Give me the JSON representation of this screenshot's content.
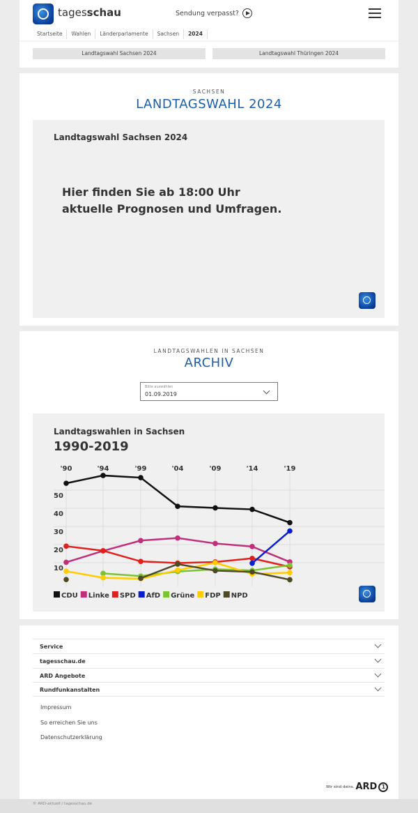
{
  "header": {
    "brand_light": "tages",
    "brand_bold": "schau",
    "missed": "Sendung verpasst?",
    "breadcrumbs": [
      "Startseite",
      "Wahlen",
      "Länderparlamente",
      "Sachsen",
      "2024"
    ],
    "quicklinks": [
      "Landtagswahl Sachsen 2024",
      "Landtagswahl Thüringen 2024"
    ]
  },
  "live": {
    "kicker": "SACHSEN",
    "title": "LANDTAGSWAHL 2024",
    "box_title": "Landtagswahl Sachsen 2024",
    "message_line1": "Hier finden Sie ab 18:00 Uhr",
    "message_line2": "aktuelle Prognosen und Umfragen."
  },
  "archive": {
    "kicker": "LANDTAGSWAHLEN IN SACHSEN",
    "title": "ARCHIV",
    "select_label": "Bitte auswählen",
    "select_value": "01.09.2019"
  },
  "chart_data": {
    "type": "line",
    "title": "Landtagswahlen in Sachsen",
    "subtitle": "1990-2019",
    "categories": [
      "'90",
      "'94",
      "'99",
      "'04",
      "'09",
      "'14",
      "'19"
    ],
    "yticks": [
      10,
      20,
      30,
      40,
      50
    ],
    "ylim": [
      0,
      60
    ],
    "grid": true,
    "legend": "bottom-left",
    "series": [
      {
        "name": "CDU",
        "color": "#111111",
        "values": [
          53.8,
          58.1,
          56.9,
          41.1,
          40.2,
          39.4,
          32.1
        ]
      },
      {
        "name": "Linke",
        "color": "#c0307a",
        "values": [
          10.2,
          16.5,
          22.2,
          23.6,
          20.6,
          18.9,
          10.4
        ]
      },
      {
        "name": "SPD",
        "color": "#e0201b",
        "values": [
          19.1,
          16.6,
          10.7,
          9.8,
          10.4,
          12.4,
          7.7
        ]
      },
      {
        "name": "AfD",
        "color": "#0a1ecc",
        "values": [
          null,
          null,
          null,
          null,
          null,
          9.7,
          27.5
        ]
      },
      {
        "name": "Grüne",
        "color": "#7ac431",
        "values": [
          null,
          4.1,
          2.6,
          5.1,
          6.4,
          5.7,
          8.6
        ]
      },
      {
        "name": "FDP",
        "color": "#ffcc00",
        "values": [
          5.3,
          1.7,
          1.1,
          5.9,
          10.0,
          3.8,
          4.5
        ]
      },
      {
        "name": "NPD",
        "color": "#4e4a26",
        "values": [
          0.7,
          null,
          1.4,
          9.2,
          5.6,
          4.9,
          0.6
        ]
      }
    ]
  },
  "footer": {
    "sections": [
      "Service",
      "tagesschau.de",
      "ARD Angebote",
      "Rundfunkanstalten"
    ],
    "links": [
      "Impressum",
      "So erreichen Sie uns",
      "Datenschutzerklärung"
    ],
    "ard_claim": "Wir sind deins.",
    "ard_logo": "ARD",
    "copyright": "© ARD-aktuell / tagesschau.de"
  }
}
